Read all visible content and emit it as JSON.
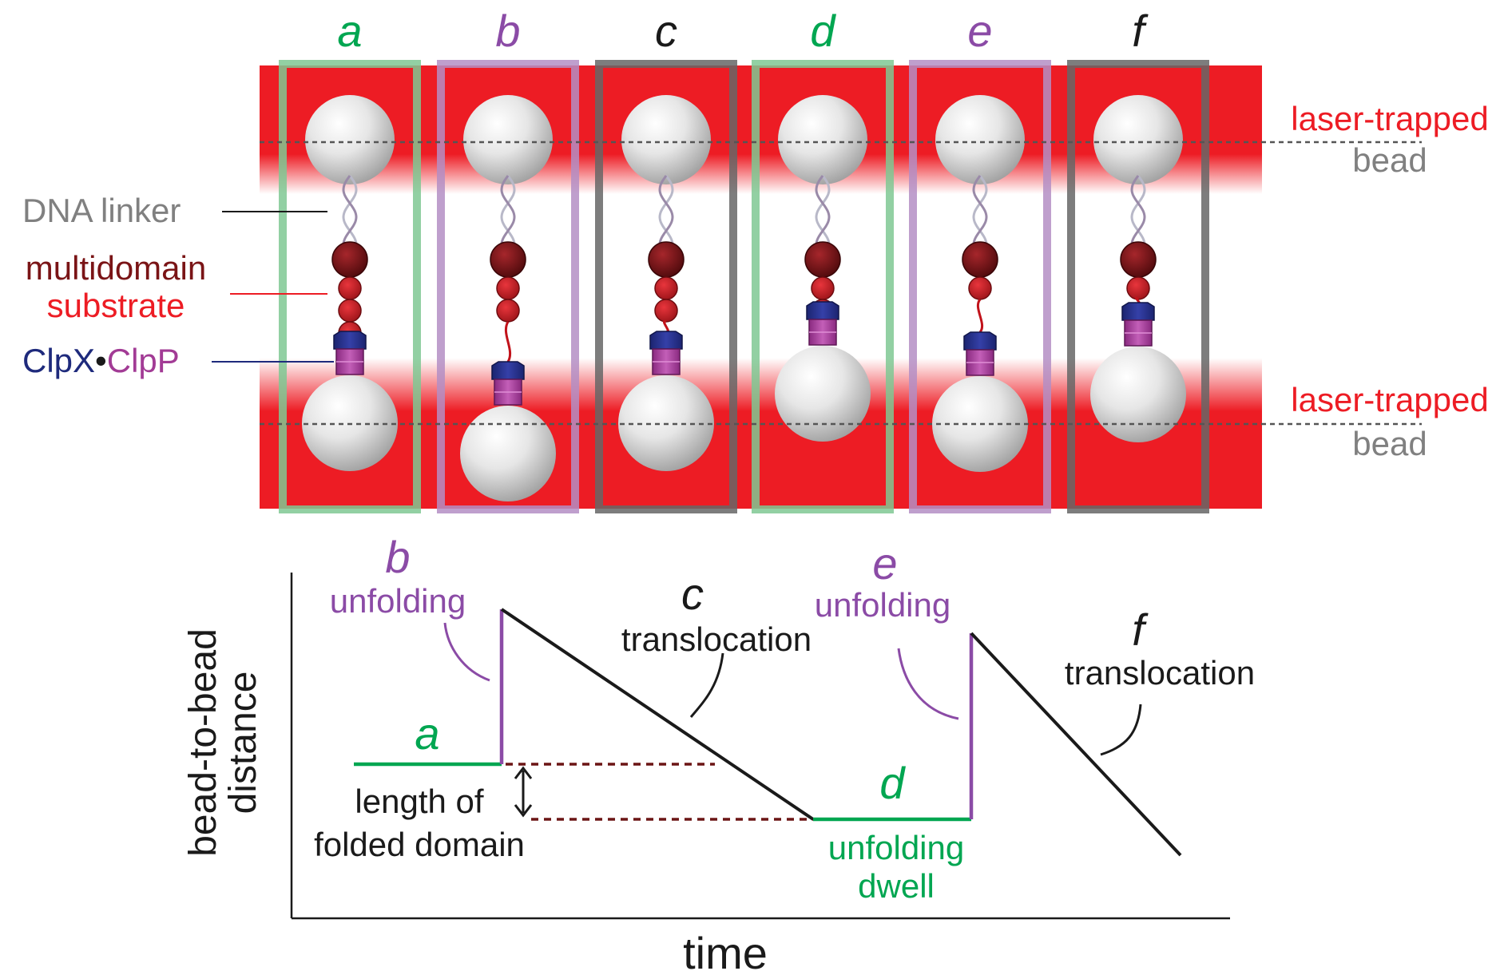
{
  "colors": {
    "trap_red": "#ed1c24",
    "green": "#00a651",
    "purple": "#8b4ba6",
    "black": "#1a1a1a",
    "gray_text": "#808080",
    "red_text": "#ed1c24",
    "dark_red_text": "#7a1416",
    "blue_text": "#1e2a7c",
    "magenta_text": "#a23b95"
  },
  "panels": [
    {
      "letter": "a",
      "color": "green",
      "domains_remaining": 3,
      "frame": "#7fc893"
    },
    {
      "letter": "b",
      "color": "purple",
      "domains_remaining": 2,
      "frame": "#b48ec4"
    },
    {
      "letter": "c",
      "color": "black",
      "domains_remaining": 2,
      "frame": "#666666"
    },
    {
      "letter": "d",
      "color": "green",
      "domains_remaining": 2,
      "frame": "#7fc893"
    },
    {
      "letter": "e",
      "color": "purple",
      "domains_remaining": 1,
      "frame": "#b48ec4"
    },
    {
      "letter": "f",
      "color": "black",
      "domains_remaining": 1,
      "frame": "#666666"
    }
  ],
  "labels": {
    "laser_top_1": "laser-trapped",
    "laser_top_2": "bead",
    "laser_bottom_1": "laser-trapped",
    "laser_bottom_2": "bead",
    "dna_linker": "DNA linker",
    "substrate_1": "multidomain",
    "substrate_2": "substrate",
    "clpx": "ClpX",
    "dot": "•",
    "clpp": "ClpP"
  },
  "plot": {
    "ylabel_1": "bead-to-bead",
    "ylabel_2": "distance",
    "xlabel": "time",
    "annotations": {
      "a_letter": "a",
      "b_letter": "b",
      "b_text": "unfolding",
      "c_letter": "c",
      "c_text": "translocation",
      "d_letter": "d",
      "d_text_1": "unfolding",
      "d_text_2": "dwell",
      "e_letter": "e",
      "e_text": "unfolding",
      "f_letter": "f",
      "f_text": "translocation",
      "length_1": "length of",
      "length_2": "folded domain"
    }
  }
}
